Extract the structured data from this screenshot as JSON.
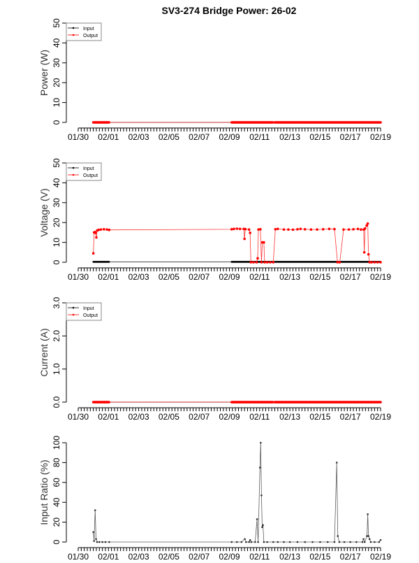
{
  "title": "SV3-274 Bridge Power: 26-02",
  "colors": {
    "input": "#000000",
    "output": "#ff0000",
    "axis": "#000000"
  },
  "chart_data": [
    {
      "type": "line",
      "id": "power",
      "ylabel": "Power (W)",
      "ylim": [
        0,
        50
      ],
      "yticks": [
        "0",
        "10",
        "20",
        "30",
        "40",
        "50"
      ],
      "ytick_values": [
        0,
        10,
        20,
        30,
        40,
        50
      ],
      "xticks": [
        "01/30",
        "02/01",
        "02/03",
        "02/05",
        "02/07",
        "02/09",
        "02/11",
        "02/13",
        "02/15",
        "02/17",
        "02/19"
      ],
      "xlim_days_from_0130": [
        0,
        20
      ],
      "legend": {
        "position": "top-left",
        "entries": [
          "Input",
          "Output"
        ]
      },
      "series": [
        {
          "name": "Input",
          "runs": [
            {
              "from": 1.0,
              "to": 2.05,
              "value": 0
            },
            {
              "from": 10.15,
              "to": 12.9,
              "value": 0
            },
            {
              "from": 13.0,
              "to": 20.0,
              "value": 0
            }
          ],
          "points": []
        },
        {
          "name": "Output",
          "runs": [
            {
              "from": 1.0,
              "to": 2.05,
              "value": 0
            },
            {
              "from": 10.15,
              "to": 12.9,
              "value": 0
            },
            {
              "from": 13.0,
              "to": 20.0,
              "value": 0
            }
          ],
          "points": []
        }
      ]
    },
    {
      "type": "line",
      "id": "voltage",
      "ylabel": "Voltage (V)",
      "ylim": [
        0,
        50
      ],
      "yticks": [
        "0",
        "10",
        "20",
        "30",
        "40",
        "50"
      ],
      "ytick_values": [
        0,
        10,
        20,
        30,
        40,
        50
      ],
      "xticks": [
        "01/30",
        "02/01",
        "02/03",
        "02/05",
        "02/07",
        "02/09",
        "02/11",
        "02/13",
        "02/15",
        "02/17",
        "02/19"
      ],
      "xlim_days_from_0130": [
        0,
        20
      ],
      "legend": {
        "position": "top-left",
        "entries": [
          "Input",
          "Output"
        ]
      },
      "series": [
        {
          "name": "Input",
          "runs": [
            {
              "from": 1.0,
              "to": 2.05,
              "value": 0.2
            },
            {
              "from": 10.15,
              "to": 12.9,
              "value": 0.2
            },
            {
              "from": 13.0,
              "to": 20.0,
              "value": 0.2
            }
          ],
          "points": []
        },
        {
          "name": "Output",
          "runs": [],
          "points": [
            [
              1.0,
              4.5
            ],
            [
              1.05,
              15.0
            ],
            [
              1.1,
              15.2
            ],
            [
              1.15,
              14.8
            ],
            [
              1.2,
              12.5
            ],
            [
              1.25,
              16.0
            ],
            [
              1.35,
              16.3
            ],
            [
              1.5,
              16.5
            ],
            [
              1.7,
              16.6
            ],
            [
              1.9,
              16.5
            ],
            [
              2.05,
              16.3
            ],
            [
              10.15,
              16.6
            ],
            [
              10.3,
              16.8
            ],
            [
              10.5,
              16.9
            ],
            [
              10.7,
              16.8
            ],
            [
              10.95,
              16.8
            ],
            [
              11.0,
              11.8
            ],
            [
              11.05,
              16.7
            ],
            [
              11.3,
              16.5
            ],
            [
              11.37,
              14.8
            ],
            [
              11.42,
              0
            ],
            [
              11.6,
              0
            ],
            [
              11.8,
              0
            ],
            [
              11.87,
              2.0
            ],
            [
              11.92,
              16.5
            ],
            [
              12.05,
              16.6
            ],
            [
              12.12,
              0
            ],
            [
              12.18,
              10.0
            ],
            [
              12.28,
              10.0
            ],
            [
              12.33,
              0
            ],
            [
              12.5,
              0
            ],
            [
              12.7,
              0
            ],
            [
              12.9,
              0
            ],
            [
              13.04,
              16.6
            ],
            [
              13.2,
              16.8
            ],
            [
              13.6,
              16.5
            ],
            [
              13.9,
              16.5
            ],
            [
              14.2,
              16.4
            ],
            [
              14.5,
              16.6
            ],
            [
              14.7,
              16.8
            ],
            [
              15.0,
              16.6
            ],
            [
              15.4,
              16.5
            ],
            [
              15.8,
              16.5
            ],
            [
              16.2,
              16.6
            ],
            [
              16.6,
              16.8
            ],
            [
              16.95,
              16.7
            ],
            [
              17.15,
              0
            ],
            [
              17.3,
              0
            ],
            [
              17.55,
              16.5
            ],
            [
              17.9,
              16.5
            ],
            [
              18.2,
              16.6
            ],
            [
              18.5,
              16.8
            ],
            [
              18.7,
              16.5
            ],
            [
              18.88,
              16.5
            ],
            [
              18.92,
              5.0
            ],
            [
              18.97,
              17.0
            ],
            [
              19.08,
              18.5
            ],
            [
              19.15,
              19.5
            ],
            [
              19.2,
              4.0
            ],
            [
              19.27,
              0
            ],
            [
              19.4,
              0
            ],
            [
              19.6,
              0
            ],
            [
              19.8,
              0
            ],
            [
              20.0,
              0
            ]
          ]
        }
      ]
    },
    {
      "type": "line",
      "id": "current",
      "ylabel": "Current (A)",
      "ylim": [
        0,
        3
      ],
      "yticks": [
        "0.0",
        "1.0",
        "2.0",
        "3.0"
      ],
      "ytick_values": [
        0,
        1,
        2,
        3
      ],
      "xticks": [
        "01/30",
        "02/01",
        "02/03",
        "02/05",
        "02/07",
        "02/09",
        "02/11",
        "02/13",
        "02/15",
        "02/17",
        "02/19"
      ],
      "xlim_days_from_0130": [
        0,
        20
      ],
      "legend": {
        "position": "top-left",
        "entries": [
          "Input",
          "Output"
        ]
      },
      "series": [
        {
          "name": "Input",
          "runs": [
            {
              "from": 1.0,
              "to": 2.05,
              "value": 0
            },
            {
              "from": 10.15,
              "to": 12.9,
              "value": 0
            },
            {
              "from": 13.0,
              "to": 20.0,
              "value": 0
            }
          ],
          "points": []
        },
        {
          "name": "Output",
          "runs": [
            {
              "from": 1.0,
              "to": 2.05,
              "value": 0
            },
            {
              "from": 10.15,
              "to": 12.9,
              "value": 0
            },
            {
              "from": 13.0,
              "to": 20.0,
              "value": 0
            }
          ],
          "points": []
        }
      ]
    },
    {
      "type": "line",
      "id": "ratio",
      "ylabel": "Input Ratio (%)",
      "ylim": [
        0,
        100
      ],
      "yticks": [
        "0",
        "20",
        "40",
        "60",
        "80",
        "100"
      ],
      "ytick_values": [
        0,
        20,
        40,
        60,
        80,
        100
      ],
      "xticks": [
        "01/30",
        "02/01",
        "02/03",
        "02/05",
        "02/07",
        "02/09",
        "02/11",
        "02/13",
        "02/15",
        "02/17",
        "02/19"
      ],
      "xlim_days_from_0130": [
        0,
        20
      ],
      "series": [
        {
          "name": "Input Ratio",
          "runs": [],
          "points": [
            [
              1.0,
              10
            ],
            [
              1.05,
              1
            ],
            [
              1.12,
              32
            ],
            [
              1.18,
              3
            ],
            [
              1.25,
              0
            ],
            [
              1.4,
              0
            ],
            [
              1.6,
              0
            ],
            [
              1.8,
              0
            ],
            [
              2.05,
              0
            ],
            [
              10.15,
              0
            ],
            [
              10.5,
              0
            ],
            [
              10.8,
              0
            ],
            [
              11.02,
              3
            ],
            [
              11.1,
              0
            ],
            [
              11.3,
              0
            ],
            [
              11.37,
              2
            ],
            [
              11.45,
              0
            ],
            [
              11.7,
              0
            ],
            [
              11.83,
              23
            ],
            [
              11.9,
              0
            ],
            [
              12.02,
              75
            ],
            [
              12.07,
              100
            ],
            [
              12.12,
              47
            ],
            [
              12.17,
              15
            ],
            [
              12.22,
              17
            ],
            [
              12.28,
              0
            ],
            [
              12.5,
              0
            ],
            [
              12.9,
              0
            ],
            [
              13.2,
              0
            ],
            [
              13.6,
              0
            ],
            [
              14.0,
              0
            ],
            [
              14.5,
              0
            ],
            [
              15.0,
              0
            ],
            [
              15.5,
              0
            ],
            [
              16.0,
              0
            ],
            [
              16.5,
              0
            ],
            [
              16.95,
              0
            ],
            [
              17.1,
              80
            ],
            [
              17.17,
              6
            ],
            [
              17.27,
              0
            ],
            [
              17.6,
              0
            ],
            [
              18.0,
              0
            ],
            [
              18.4,
              0
            ],
            [
              18.8,
              0
            ],
            [
              18.87,
              3
            ],
            [
              18.95,
              0
            ],
            [
              19.1,
              6
            ],
            [
              19.15,
              28
            ],
            [
              19.2,
              6
            ],
            [
              19.27,
              3
            ],
            [
              19.35,
              0
            ],
            [
              19.6,
              0
            ],
            [
              19.9,
              0
            ],
            [
              20.0,
              2
            ]
          ]
        }
      ]
    }
  ]
}
